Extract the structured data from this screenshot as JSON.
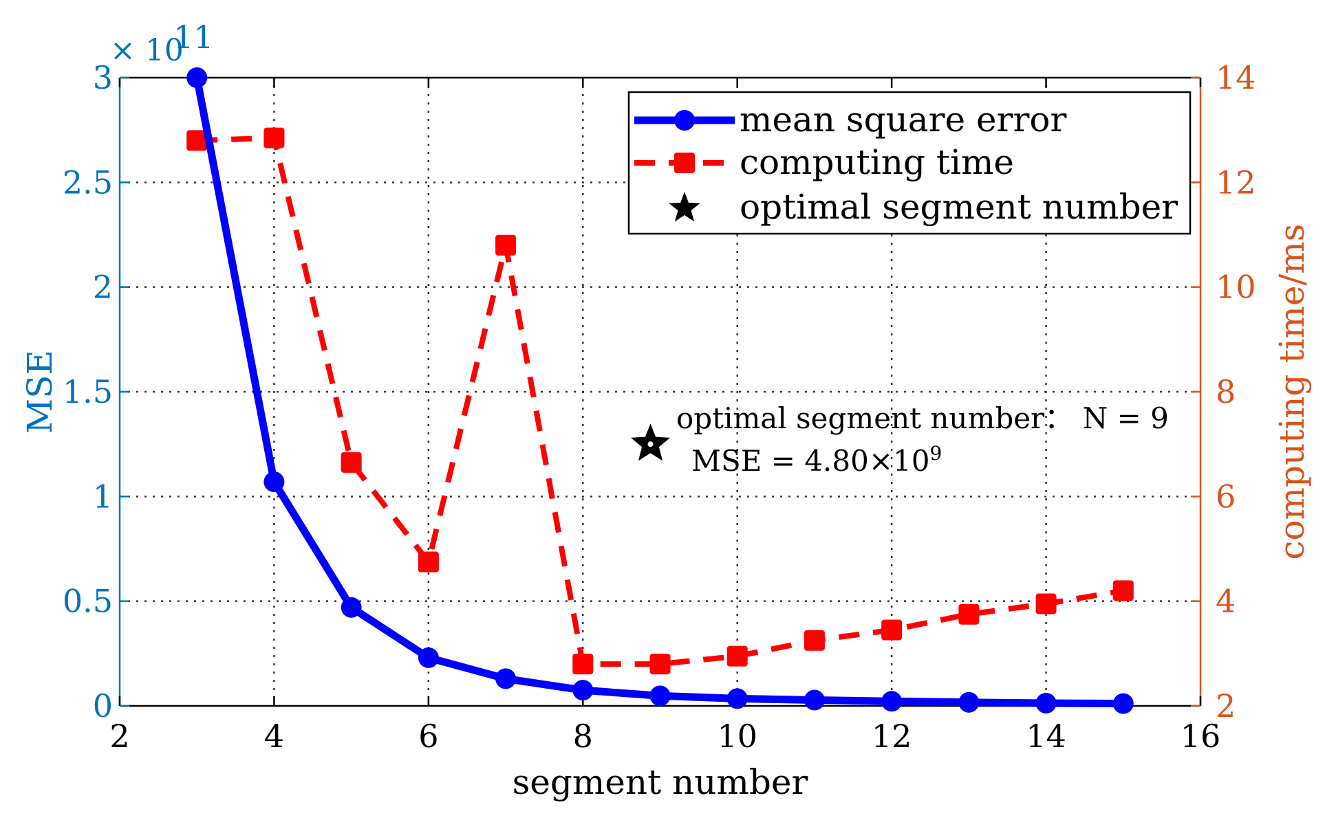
{
  "chart_data": {
    "type": "line",
    "title": "",
    "xlabel": "segment number",
    "ylabel_left": "MSE",
    "ylabel_right": "computing time/ms",
    "y_left_exponent": "× 10",
    "y_left_exponent_power": "11",
    "xlim": [
      2,
      16
    ],
    "ylim_left": [
      0,
      3
    ],
    "ylim_right": [
      2,
      14
    ],
    "x_ticks": [
      "2",
      "4",
      "6",
      "8",
      "10",
      "12",
      "14",
      "16"
    ],
    "y_left_ticks": [
      "0",
      "0.5",
      "1",
      "1.5",
      "2",
      "2.5",
      "3"
    ],
    "y_right_ticks": [
      "2",
      "4",
      "6",
      "8",
      "10",
      "12",
      "14"
    ],
    "grid": true,
    "legend_position": "top-right",
    "series": [
      {
        "name": "mean square error",
        "axis": "left",
        "color": "#0000FF",
        "style": "solid",
        "marker": "circle",
        "x": [
          3,
          4,
          5,
          6,
          7,
          8,
          9,
          10,
          11,
          12,
          13,
          14,
          15
        ],
        "values": [
          3.0,
          1.07,
          0.47,
          0.23,
          0.13,
          0.075,
          0.048,
          0.035,
          0.028,
          0.022,
          0.017,
          0.013,
          0.011
        ]
      },
      {
        "name": "computing time",
        "axis": "right",
        "color": "#FF0000",
        "style": "dashed",
        "marker": "square",
        "x": [
          3,
          4,
          5,
          6,
          7,
          8,
          9,
          10,
          11,
          12,
          13,
          14,
          15
        ],
        "values": [
          12.8,
          12.85,
          6.65,
          4.75,
          10.8,
          2.8,
          2.8,
          2.95,
          3.25,
          3.45,
          3.75,
          3.95,
          4.2
        ]
      },
      {
        "name": "optimal segment number",
        "axis": "left",
        "color": "#000000",
        "marker": "star"
      }
    ],
    "annotations": {
      "marker_point": {
        "x": 9.0,
        "y": 1.25
      },
      "line1": "optimal segment number： N = 9",
      "line2_prefix": "MSE = 4.80×10",
      "line2_power": "9"
    }
  },
  "colors": {
    "left_axis": "#0072BD",
    "right_axis": "#D95319"
  }
}
